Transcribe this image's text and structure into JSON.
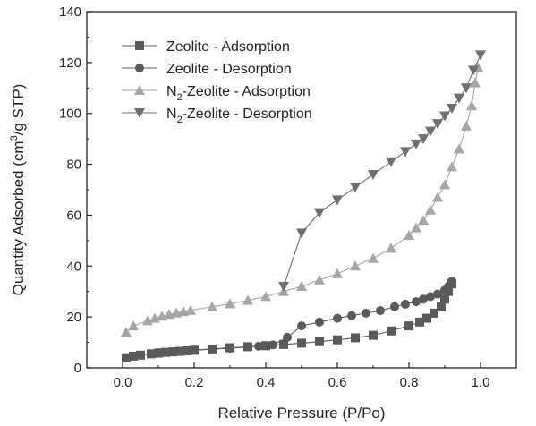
{
  "chart_data": {
    "type": "scatter",
    "xlabel": "Relative Pressure (P/Po)",
    "ylabel_parts": [
      "Quantity Adsorbed (cm",
      "3",
      "/g STP)"
    ],
    "xlim": [
      -0.1,
      1.1
    ],
    "ylim": [
      0,
      140
    ],
    "xticks": [
      0.0,
      0.2,
      0.4,
      0.6,
      0.8,
      1.0
    ],
    "xtick_labels": [
      "0.0",
      "0.2",
      "0.4",
      "0.6",
      "0.8",
      "1.0"
    ],
    "yticks": [
      0,
      20,
      40,
      60,
      80,
      100,
      120,
      140
    ],
    "ytick_labels": [
      "0",
      "20",
      "40",
      "60",
      "80",
      "100",
      "120",
      "140"
    ],
    "grid": false,
    "legend_position": "top-left",
    "series": [
      {
        "name": "Zeolite - Adsorption",
        "legend_parts": [
          "Zeolite - Adsorption"
        ],
        "marker": "square",
        "color": "#5a5a5a",
        "x": [
          0.01,
          0.03,
          0.05,
          0.08,
          0.1,
          0.12,
          0.14,
          0.16,
          0.18,
          0.2,
          0.25,
          0.3,
          0.35,
          0.4,
          0.45,
          0.5,
          0.55,
          0.6,
          0.65,
          0.7,
          0.75,
          0.8,
          0.83,
          0.85,
          0.87,
          0.89,
          0.9,
          0.91,
          0.92
        ],
        "y": [
          4,
          4.6,
          5,
          5.5,
          5.8,
          6.1,
          6.3,
          6.5,
          6.7,
          6.9,
          7.4,
          7.9,
          8.3,
          8.7,
          9.2,
          9.7,
          10.3,
          11,
          11.8,
          12.8,
          14.5,
          16.5,
          18,
          19.5,
          21.5,
          24,
          27,
          30,
          33
        ]
      },
      {
        "name": "Zeolite - Desorption",
        "legend_parts": [
          "Zeolite - Desorption"
        ],
        "marker": "circle",
        "color": "#5a5a5a",
        "x": [
          0.92,
          0.91,
          0.9,
          0.88,
          0.86,
          0.84,
          0.82,
          0.79,
          0.76,
          0.72,
          0.68,
          0.64,
          0.6,
          0.55,
          0.5,
          0.46,
          0.42,
          0.38,
          0.3,
          0.2,
          0.1
        ],
        "y": [
          34,
          32,
          30.5,
          29,
          28,
          27,
          26,
          25,
          24,
          22.5,
          21.5,
          20.5,
          19.5,
          18,
          16.5,
          12,
          9,
          8.5,
          7.7,
          7,
          6
        ]
      },
      {
        "name": "N2-Zeolite - Adsorption",
        "legend_parts": [
          "N",
          "2",
          "-Zeolite - Adsorption"
        ],
        "marker": "triangle-up",
        "color": "#a6a6a6",
        "x": [
          0.01,
          0.03,
          0.07,
          0.09,
          0.11,
          0.13,
          0.15,
          0.17,
          0.19,
          0.25,
          0.3,
          0.35,
          0.4,
          0.45,
          0.5,
          0.55,
          0.6,
          0.65,
          0.7,
          0.75,
          0.8,
          0.82,
          0.84,
          0.86,
          0.88,
          0.9,
          0.92,
          0.94,
          0.96,
          0.975,
          0.985,
          0.993
        ],
        "y": [
          14,
          16.5,
          18.5,
          19.5,
          20.3,
          21,
          21.6,
          22.1,
          22.6,
          24,
          25.2,
          26.5,
          28,
          30,
          32,
          34.5,
          37,
          40,
          43,
          47,
          52,
          55,
          58,
          62,
          67,
          72,
          79,
          86,
          95,
          103,
          112,
          118
        ]
      },
      {
        "name": "N2-Zeolite - Desorption",
        "legend_parts": [
          "N",
          "2",
          "-Zeolite - Desorption"
        ],
        "marker": "triangle-down",
        "color": "#6f6f6f",
        "x": [
          1.0,
          0.98,
          0.96,
          0.94,
          0.92,
          0.9,
          0.88,
          0.86,
          0.84,
          0.82,
          0.79,
          0.75,
          0.7,
          0.65,
          0.6,
          0.55,
          0.5,
          0.45
        ],
        "y": [
          123,
          117,
          110,
          106,
          102,
          99,
          96,
          93,
          90,
          88,
          85,
          81,
          76,
          71,
          66,
          61,
          53,
          32
        ]
      }
    ]
  }
}
